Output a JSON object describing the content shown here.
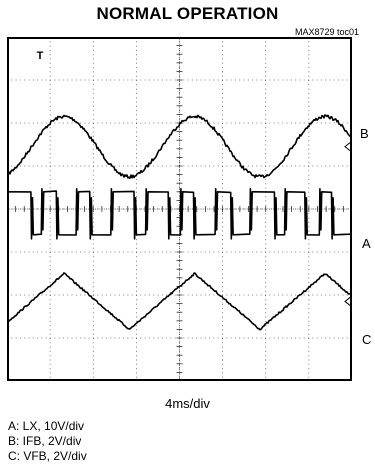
{
  "header": {
    "title": "NORMAL OPERATION",
    "toc_label": "MAX8729 toc01"
  },
  "scope": {
    "timebase": "4ms/div",
    "trigger_marker": "T",
    "channel_labels": {
      "A": "A",
      "B": "B",
      "C": "C"
    },
    "legend": [
      "A: LX, 10V/div",
      "B: IFB, 2V/div",
      "C: VFB, 2V/div"
    ]
  },
  "chart_data": {
    "type": "line",
    "title": "NORMAL OPERATION",
    "xlabel": "4ms/div",
    "ylabel": "",
    "divisions": {
      "x": 8,
      "y": 8
    },
    "xlim": [
      0,
      32
    ],
    "x_units": "ms",
    "grid": true,
    "series": [
      {
        "name": "B",
        "description": "IFB, 2V/div",
        "shape": "sine",
        "period_ms": 12.1,
        "first_peak_ms": 5.3,
        "center_div": 2.55,
        "amplitude_div": 0.7,
        "noise": "moderate"
      },
      {
        "name": "A",
        "description": "LX, 10V/div",
        "shape": "pwm_square",
        "high_div": 4.6,
        "low_div": 3.6,
        "duty_low_min": 0.3,
        "duty_low_max": 0.7,
        "switching_period_ms": 3.0
      },
      {
        "name": "C",
        "description": "VFB, 2V/div",
        "shape": "triangle",
        "period_ms": 12.1,
        "first_peak_ms": 5.3,
        "center_div": 6.15,
        "amplitude_div": 0.65,
        "noise": "low"
      }
    ]
  }
}
